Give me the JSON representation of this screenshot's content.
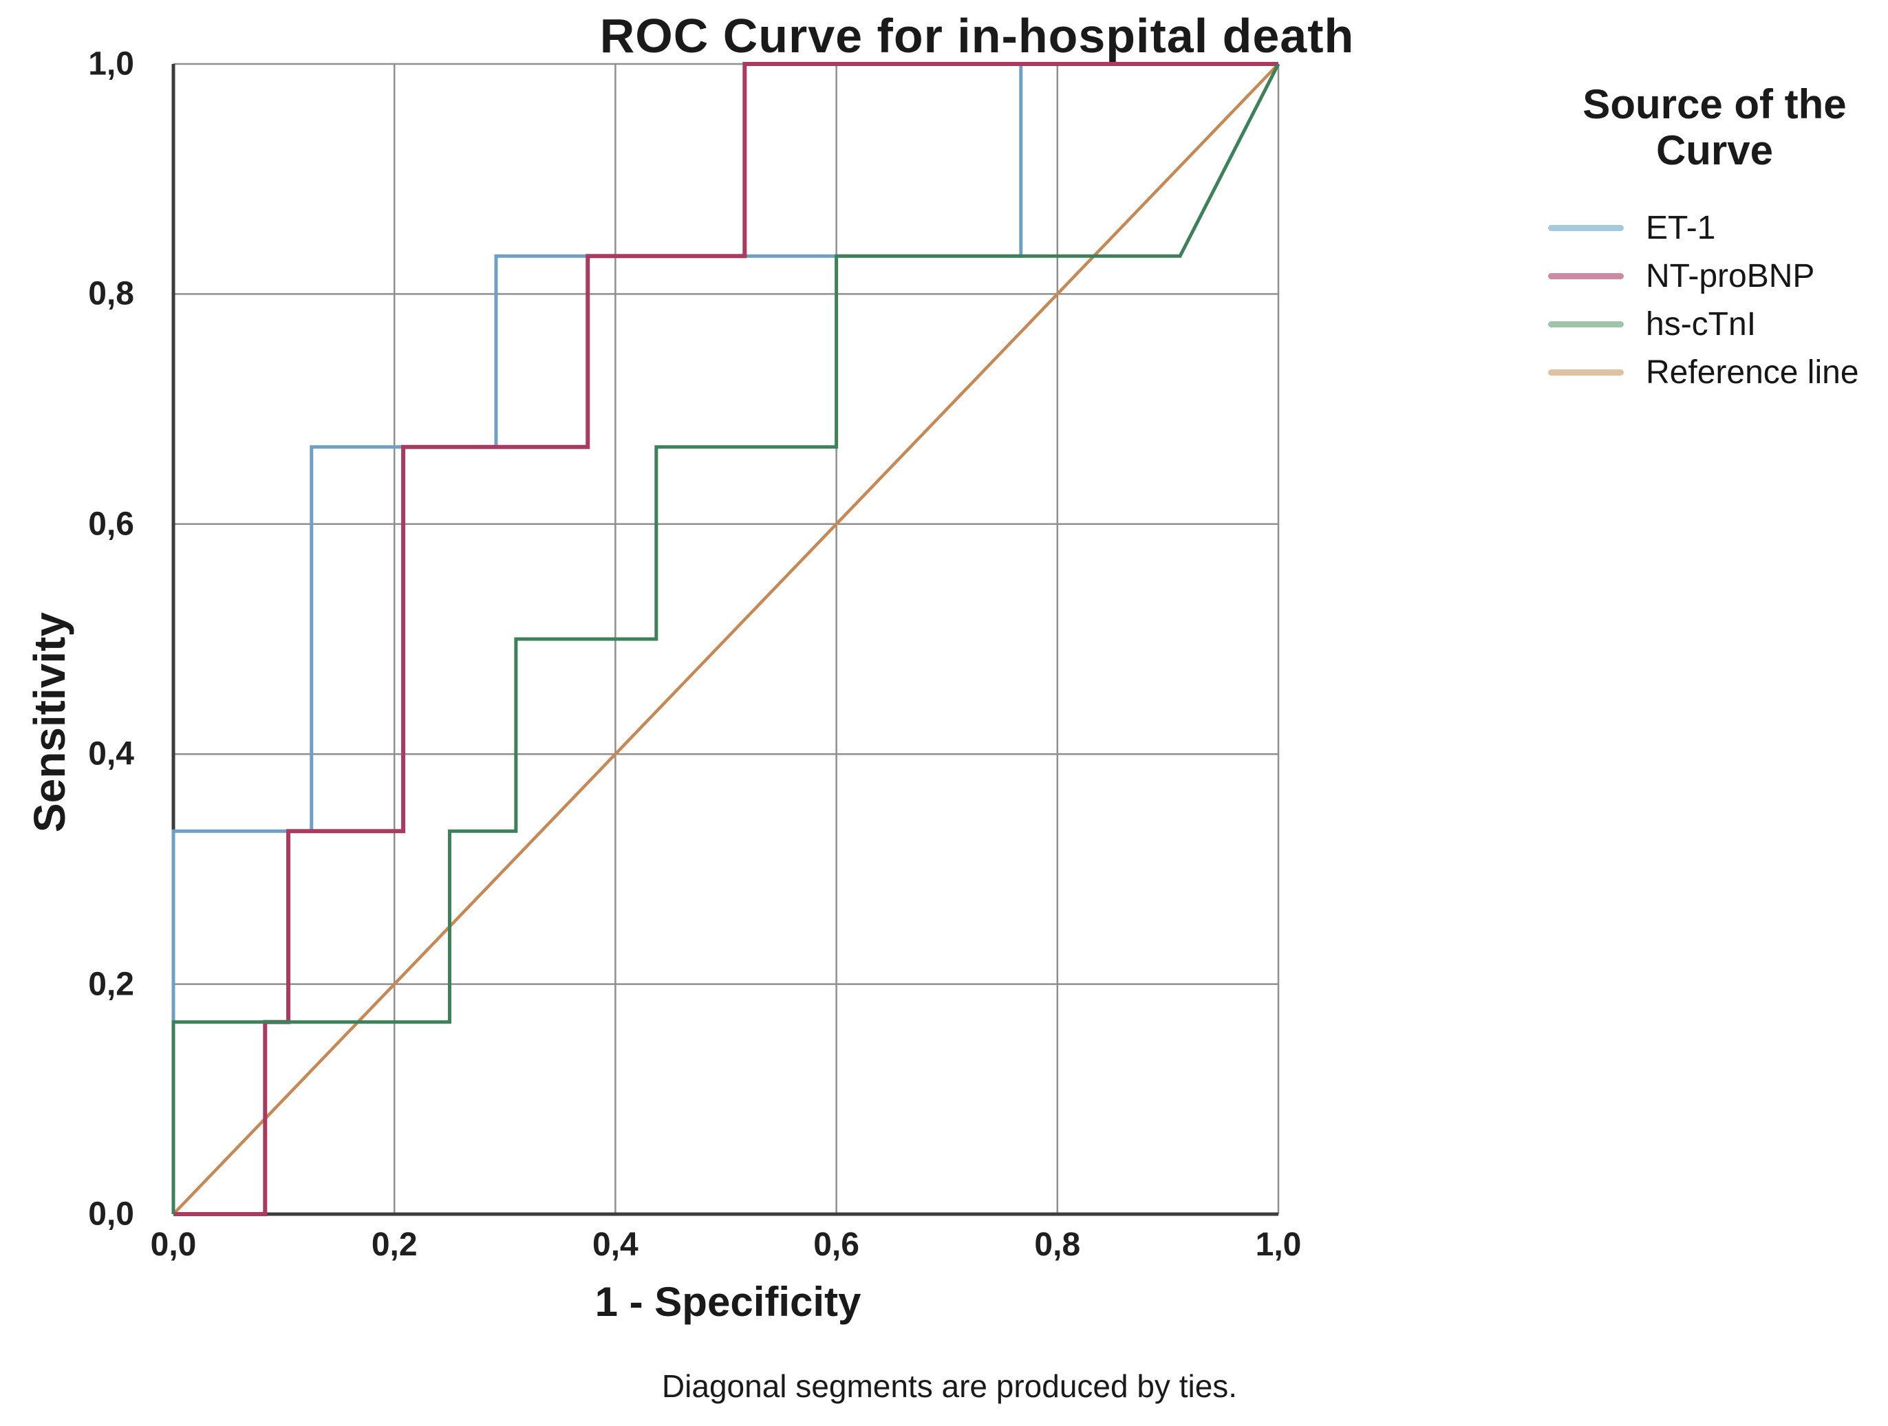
{
  "figure": {
    "title": "ROC Curve for in-hospital death",
    "footnote": "Diagonal segments are produced by ties.",
    "background": "#ffffff"
  },
  "axes": {
    "x": {
      "title": "1 - Specificity",
      "tick_labels": [
        "0,0",
        "0,2",
        "0,4",
        "0,6",
        "0,8",
        "1,0"
      ],
      "tick_values": [
        0,
        0.2,
        0.4,
        0.6,
        0.8,
        1.0
      ],
      "range": [
        0,
        1
      ]
    },
    "y": {
      "title": "Sensitivity",
      "tick_labels": [
        "0,0",
        "0,2",
        "0,4",
        "0,6",
        "0,8",
        "1,0"
      ],
      "tick_values": [
        0,
        0.2,
        0.4,
        0.6,
        0.8,
        1.0
      ],
      "range": [
        0,
        1
      ]
    }
  },
  "legend": {
    "title": "Source of the Curve",
    "items": [
      {
        "label": "ET-1",
        "swatch_color": "#a7c9de"
      },
      {
        "label": "NT-proBNP",
        "swatch_color": "#cb8ba3"
      },
      {
        "label": "hs-cTnI",
        "swatch_color": "#9ec5a8"
      },
      {
        "label": "Reference line",
        "swatch_color": "#dfc2a2"
      }
    ]
  },
  "colors": {
    "gridline": "#8f8f8f",
    "axis_frame": "#3c3c3c",
    "text": "#1a1a1a"
  },
  "chart_data": {
    "type": "line",
    "subtype": "roc-step",
    "title": "ROC Curve for in-hospital death",
    "xlabel": "1 - Specificity",
    "ylabel": "Sensitivity",
    "xlim": [
      0,
      1
    ],
    "ylim": [
      0,
      1
    ],
    "grid": true,
    "legend_position": "right",
    "footnote": "Diagonal segments are produced by ties.",
    "series": [
      {
        "name": "ET-1",
        "color": "#6f9fc2",
        "stroke_width": 5,
        "points": [
          [
            0,
            0
          ],
          [
            0,
            0.333
          ],
          [
            0.125,
            0.333
          ],
          [
            0.125,
            0.667
          ],
          [
            0.292,
            0.667
          ],
          [
            0.292,
            0.833
          ],
          [
            0.767,
            0.833
          ],
          [
            0.767,
            1.0
          ],
          [
            1.0,
            1.0
          ]
        ]
      },
      {
        "name": "NT-proBNP",
        "color": "#ab3a60",
        "stroke_width": 6,
        "points": [
          [
            0,
            0
          ],
          [
            0.083,
            0
          ],
          [
            0.083,
            0.167
          ],
          [
            0.104,
            0.167
          ],
          [
            0.104,
            0.333
          ],
          [
            0.208,
            0.333
          ],
          [
            0.208,
            0.667
          ],
          [
            0.375,
            0.667
          ],
          [
            0.375,
            0.833
          ],
          [
            0.517,
            0.833
          ],
          [
            0.517,
            1.0
          ],
          [
            1.0,
            1.0
          ]
        ]
      },
      {
        "name": "hs-cTnI",
        "color": "#3d8059",
        "stroke_width": 5,
        "points": [
          [
            0,
            0
          ],
          [
            0,
            0.167
          ],
          [
            0.25,
            0.167
          ],
          [
            0.25,
            0.333
          ],
          [
            0.31,
            0.333
          ],
          [
            0.31,
            0.5
          ],
          [
            0.437,
            0.5
          ],
          [
            0.437,
            0.667
          ],
          [
            0.6,
            0.667
          ],
          [
            0.6,
            0.833
          ],
          [
            0.911,
            0.833
          ],
          [
            1.0,
            1.0
          ]
        ]
      },
      {
        "name": "Reference line",
        "role": "reference",
        "color": "#c68854",
        "stroke_width": 4.5,
        "points": [
          [
            0,
            0
          ],
          [
            1.0,
            1.0
          ]
        ]
      }
    ]
  }
}
